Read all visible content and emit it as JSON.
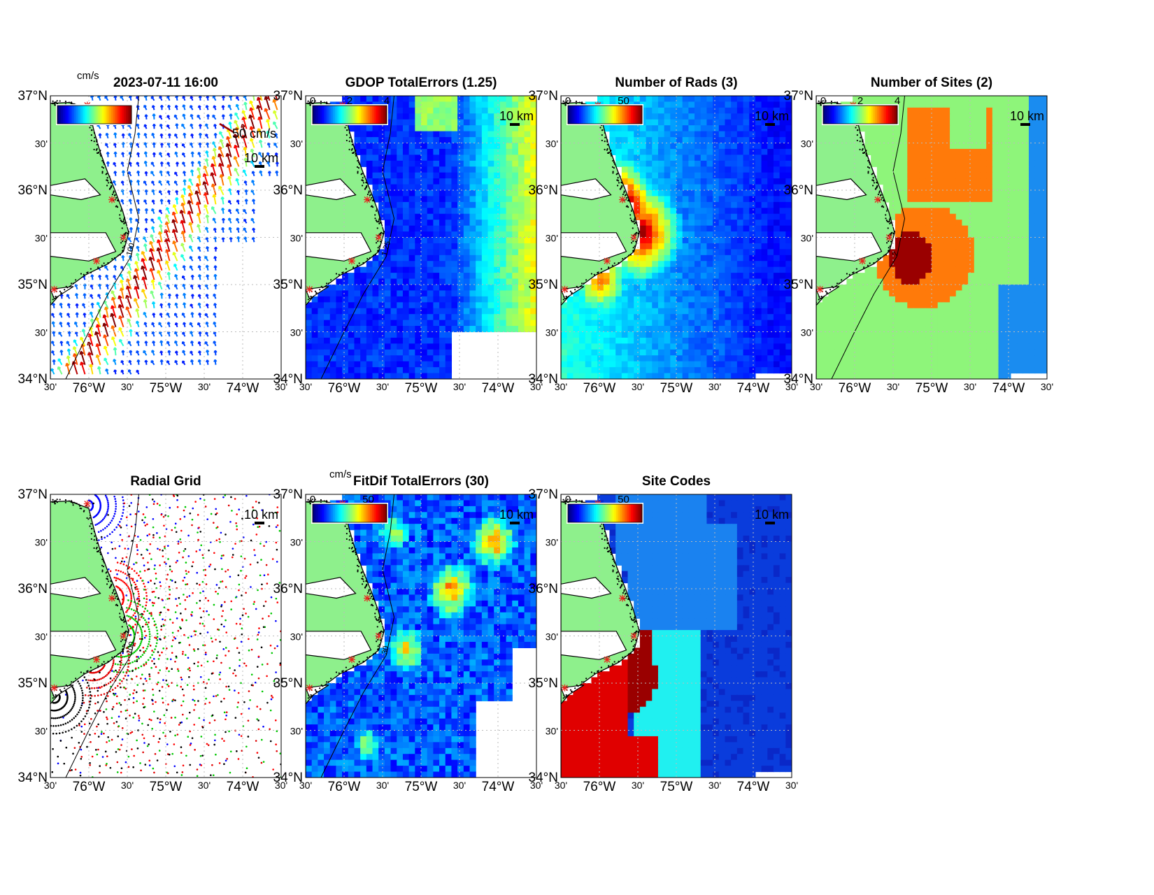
{
  "lat_labels": [
    "37°N",
    "30'",
    "36°N",
    "30'",
    "35°N",
    "30'",
    "34°N"
  ],
  "lon_labels": [
    "30'",
    "76°W",
    "30'",
    "75°W",
    "30'",
    "74°W",
    "30'"
  ],
  "scale_bar_label": "10 km",
  "panels": [
    {
      "id": "totals",
      "title": "2023-07-11 16:00",
      "colorbar_unit": "cm/s",
      "colorbar_ticks": [],
      "vector_scale_label": "50 cm/s",
      "contour_label": "100",
      "field": "vectors",
      "colors": {
        "land": "#8ef08c",
        "site_marker": "#e8261f"
      }
    },
    {
      "id": "gdop",
      "title": "GDOP TotalErrors (1.25)",
      "colorbar_ticks": [
        "0",
        "2",
        "4"
      ],
      "contour_label": "1.25",
      "field": "gdop"
    },
    {
      "id": "nrads",
      "title": "Number of Rads (3)",
      "colorbar_ticks": [
        "0",
        "50"
      ],
      "contour_label": "3",
      "field": "nrads"
    },
    {
      "id": "nsites",
      "title": "Number of Sites (2)",
      "colorbar_ticks": [
        "0",
        "2",
        "4"
      ],
      "contour_label": "2",
      "field": "nsites",
      "colors": {
        "sites_1": "#1a8cf0",
        "sites_2": "#8ef57a",
        "sites_3": "#ff7a0a",
        "sites_4": "#9a0000"
      }
    },
    {
      "id": "radial",
      "title": "Radial Grid",
      "contour_label": "100",
      "field": "radial",
      "colors": {
        "site_a": "#0000ff",
        "site_b": "#ff0000",
        "site_c": "#00c800",
        "site_d": "#e00000",
        "site_e": "#000000"
      }
    },
    {
      "id": "fitdif",
      "title": "FitDif TotalErrors (30)",
      "colorbar_unit": "cm/s",
      "colorbar_ticks": [
        "0",
        "50"
      ],
      "contour_label": "30",
      "field": "fitdif"
    },
    {
      "id": "sitecodes",
      "title": "Site Codes",
      "colorbar_ticks": [
        "0",
        "50"
      ],
      "field": "sitecodes"
    }
  ]
}
